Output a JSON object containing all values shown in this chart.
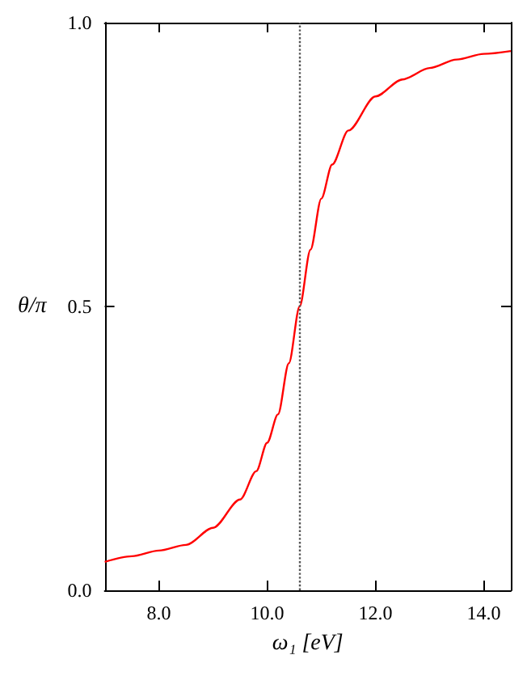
{
  "chart_data": {
    "type": "line",
    "xlabel": "ω₁ [eV]",
    "ylabel": "θ/π",
    "x": [
      7.0,
      7.5,
      8.0,
      8.5,
      9.0,
      9.5,
      9.8,
      10.0,
      10.2,
      10.4,
      10.6,
      10.8,
      11.0,
      11.2,
      11.5,
      12.0,
      12.5,
      13.0,
      13.5,
      14.0,
      14.5
    ],
    "series": [
      {
        "color": "#ff0000",
        "values": [
          0.05,
          0.06,
          0.07,
          0.08,
          0.11,
          0.16,
          0.21,
          0.26,
          0.31,
          0.4,
          0.5,
          0.6,
          0.69,
          0.75,
          0.81,
          0.87,
          0.9,
          0.92,
          0.935,
          0.945,
          0.95
        ]
      }
    ],
    "xlim": [
      7,
      14.5
    ],
    "xticks": [
      {
        "value": 8,
        "label": "8.0"
      },
      {
        "value": 10,
        "label": "10.0"
      },
      {
        "value": 12,
        "label": "12.0"
      },
      {
        "value": 14,
        "label": "14.0"
      }
    ],
    "ylim": [
      0,
      1
    ],
    "yticks": [
      {
        "value": 0,
        "label": "0.0"
      },
      {
        "value": 0.5,
        "label": "0.5"
      },
      {
        "value": 1,
        "label": "1.0"
      }
    ],
    "ref_lines": [
      {
        "axis": "x",
        "value": 10.6,
        "color": "#555555",
        "line_style": "dotted"
      }
    ],
    "marker": "none",
    "line_style": "solid"
  }
}
